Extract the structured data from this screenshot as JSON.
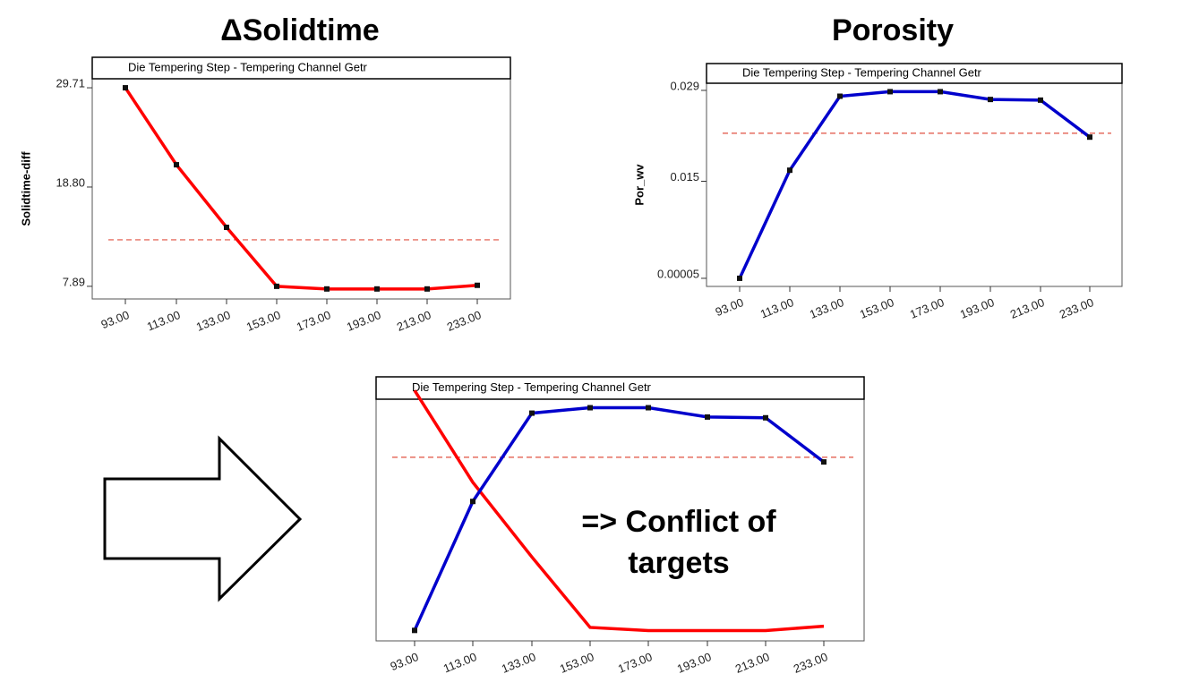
{
  "chart_data": [
    {
      "type": "line",
      "title": "ΔSolidtime",
      "subtitle": "Die Tempering Step - Tempering Channel Getr",
      "ylabel": "Solidtime-diff",
      "categories": [
        "93.00",
        "113.00",
        "133.00",
        "153.00",
        "173.00",
        "193.00",
        "213.00",
        "233.00"
      ],
      "series": [
        {
          "color": "#ff0000",
          "markers": true,
          "values": [
            29.71,
            21.25,
            14.37,
            7.89,
            7.6,
            7.6,
            7.6,
            8.0
          ]
        }
      ],
      "ylim": [
        6.5,
        30.7
      ],
      "yticks": [
        7.89,
        {
          "value": 18.8,
          "label": "18.80"
        },
        29.71
      ],
      "threshold": 13.0,
      "threshold_color": "#e05040"
    },
    {
      "type": "line",
      "title": "Porosity",
      "subtitle": "Die Tempering Step - Tempering Channel Getr",
      "ylabel": "Por_wv",
      "categories": [
        "93.00",
        "113.00",
        "133.00",
        "153.00",
        "173.00",
        "193.00",
        "213.00",
        "233.00"
      ],
      "series": [
        {
          "color": "#0000cc",
          "markers": true,
          "values": [
            5e-05,
            0.0167,
            0.0281,
            0.0288,
            0.0288,
            0.0276,
            0.0275,
            0.0218
          ]
        }
      ],
      "ylim": [
        -0.0012,
        0.0301
      ],
      "yticks": [
        5e-05,
        0.015,
        0.029
      ],
      "threshold": 0.0224,
      "threshold_color": "#e05040"
    },
    {
      "type": "line",
      "subtitle": "Die Tempering Step - Tempering Channel Getr",
      "categories": [
        "93.00",
        "113.00",
        "133.00",
        "153.00",
        "173.00",
        "193.00",
        "213.00",
        "233.00"
      ],
      "series": [
        {
          "color": "#ff0000",
          "markers": false,
          "values": [
            29.71,
            21.25,
            14.37,
            7.89,
            7.6,
            7.6,
            7.6,
            8.0
          ]
        },
        {
          "color": "#0000cc",
          "markers": true,
          "axis": "y2",
          "values": [
            5e-05,
            0.0167,
            0.0281,
            0.0288,
            0.0288,
            0.0276,
            0.0275,
            0.0218
          ]
        }
      ],
      "ylim": [
        6.65,
        28.9
      ],
      "y2lim": [
        -0.0013,
        0.0299
      ],
      "threshold": 0.0224,
      "threshold_axis": "y2",
      "threshold_color": "#e05040",
      "annotation": [
        "=> Conflict of",
        "targets"
      ]
    }
  ]
}
